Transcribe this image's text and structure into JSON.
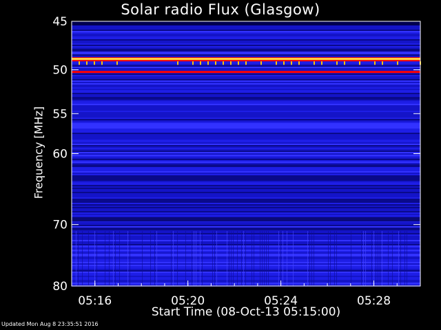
{
  "chart_data": {
    "type": "heatmap",
    "title": "Solar radio Flux (Glasgow)",
    "xlabel": "Start Time (08-Oct-13 05:15:00)",
    "ylabel": "Frequency [MHz]",
    "x_range_minutes": [
      "05:15:00",
      "05:30:00"
    ],
    "x_ticks": [
      "05:16",
      "05:20",
      "05:24",
      "05:28"
    ],
    "y_range": [
      45,
      80
    ],
    "y_ticks": [
      45,
      50,
      55,
      60,
      70,
      80
    ],
    "y_scale": "log",
    "colormap": [
      "#000050",
      "#0000b0",
      "#2a2aff",
      "#ff0000",
      "#ffc800",
      "#ffffa0"
    ],
    "features": {
      "strong_band_mhz": 48.8,
      "secondary_band_mhz": 50.2,
      "weak_band_mhz": 69.2
    }
  },
  "footer": {
    "updated": "Updated Mon Aug  8 23:35:51 2016"
  }
}
